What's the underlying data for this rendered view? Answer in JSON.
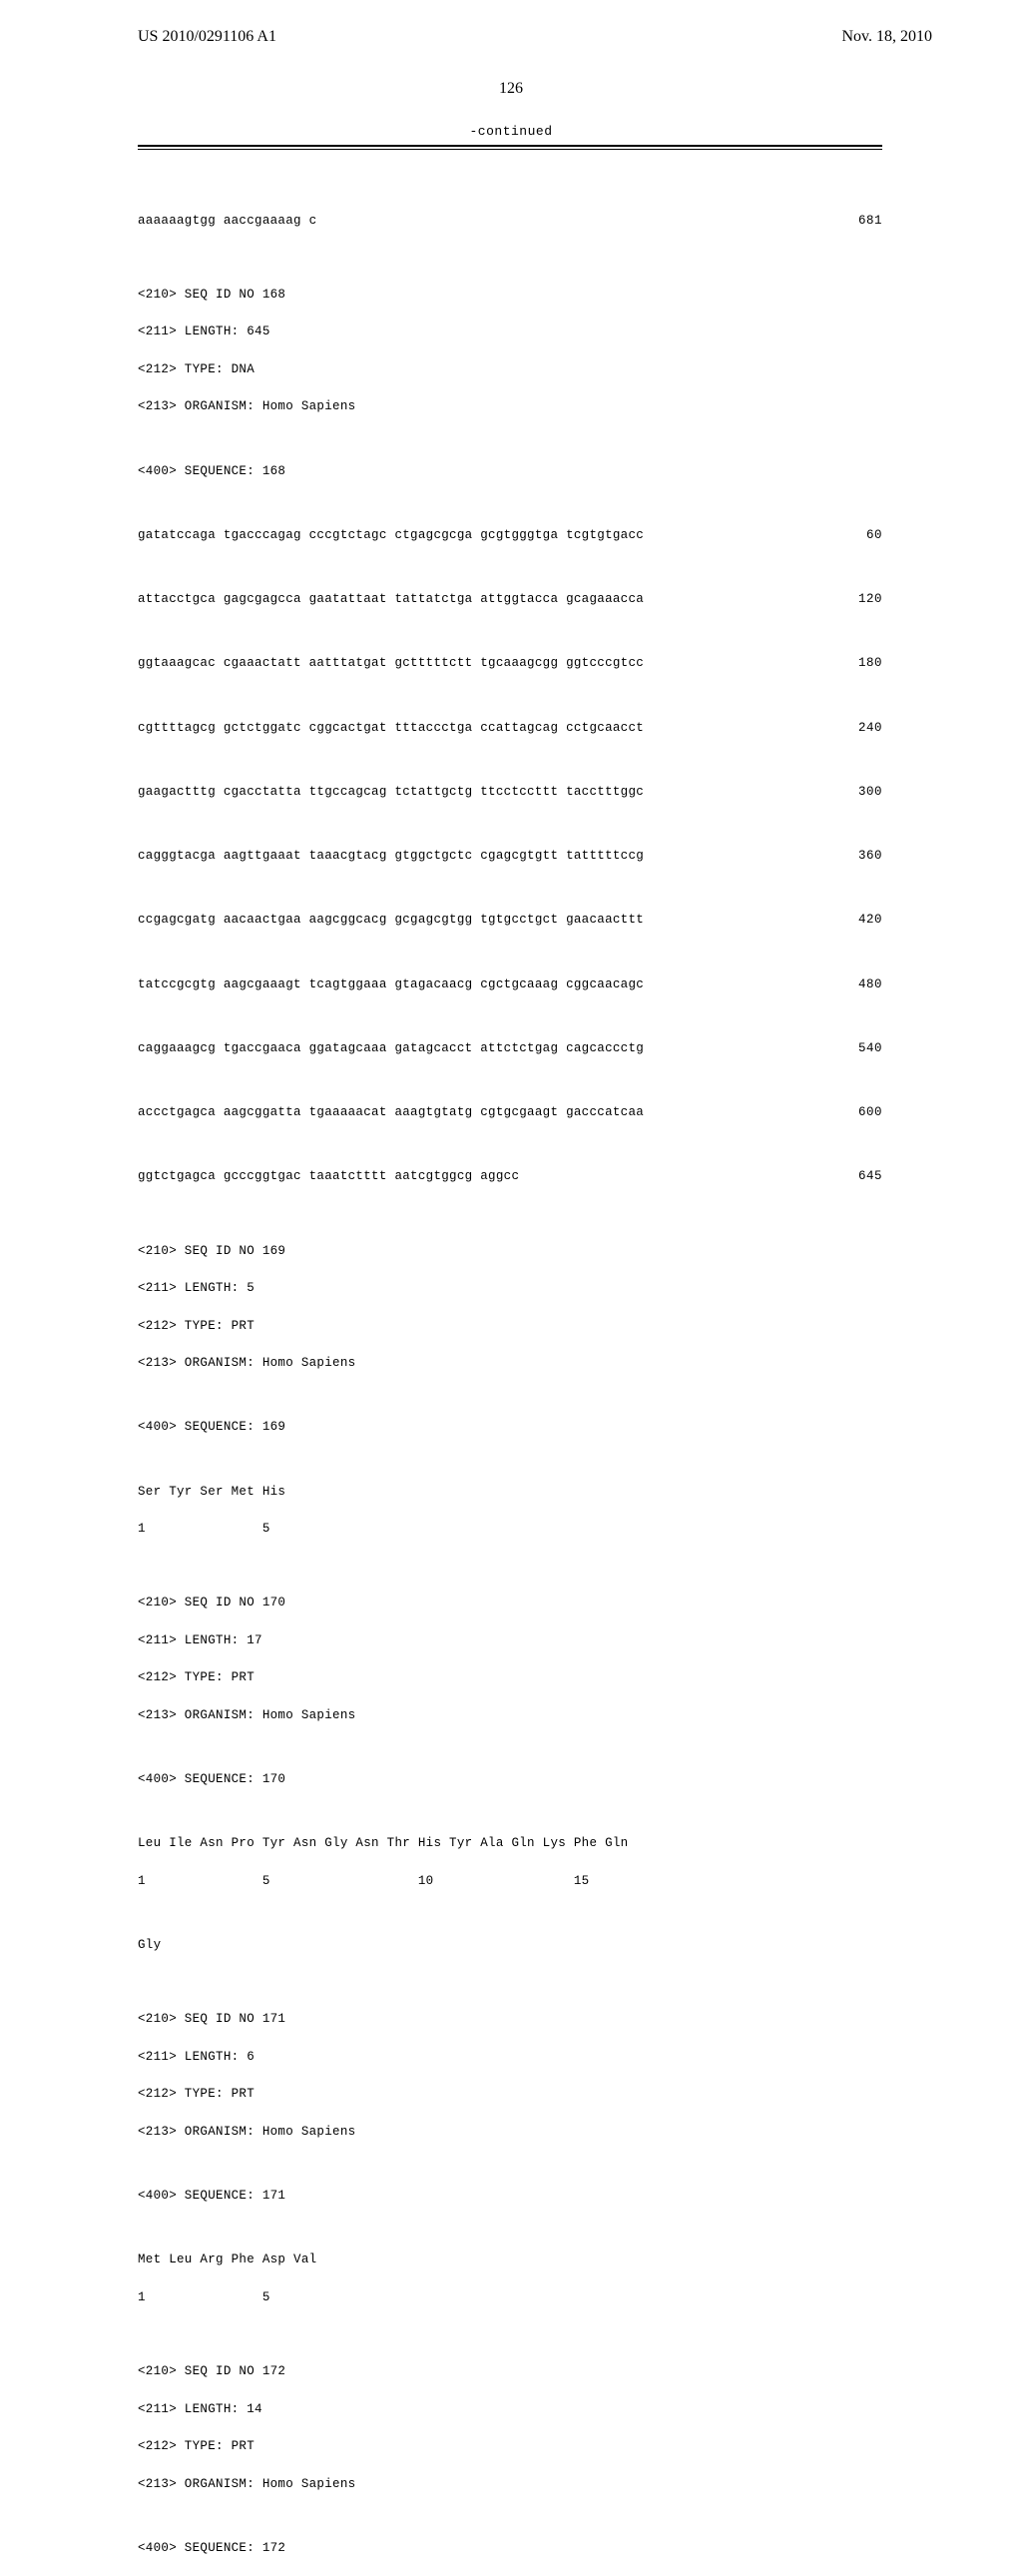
{
  "header": {
    "left": "US 2010/0291106 A1",
    "right": "Nov. 18, 2010"
  },
  "page_number": "126",
  "continued_label": "-continued",
  "seq167_tail": {
    "text": "aaaaaagtgg aaccgaaaag c",
    "num": "681"
  },
  "seq168": {
    "meta": [
      "<210> SEQ ID NO 168",
      "<211> LENGTH: 645",
      "<212> TYPE: DNA",
      "<213> ORGANISM: Homo Sapiens"
    ],
    "sequence_header": "<400> SEQUENCE: 168",
    "lines": [
      {
        "text": "gatatccaga tgacccagag cccgtctagc ctgagcgcga gcgtgggtga tcgtgtgacc",
        "num": "60"
      },
      {
        "text": "attacctgca gagcgagcca gaatattaat tattatctga attggtacca gcagaaacca",
        "num": "120"
      },
      {
        "text": "ggtaaagcac cgaaactatt aatttatgat gctttttctt tgcaaagcgg ggtcccgtcc",
        "num": "180"
      },
      {
        "text": "cgttttagcg gctctggatc cggcactgat tttaccctga ccattagcag cctgcaacct",
        "num": "240"
      },
      {
        "text": "gaagactttg cgacctatta ttgccagcag tctattgctg ttcctccttt tacctttggc",
        "num": "300"
      },
      {
        "text": "cagggtacga aagttgaaat taaacgtacg gtggctgctc cgagcgtgtt tatttttccg",
        "num": "360"
      },
      {
        "text": "ccgagcgatg aacaactgaa aagcggcacg gcgagcgtgg tgtgcctgct gaacaacttt",
        "num": "420"
      },
      {
        "text": "tatccgcgtg aagcgaaagt tcagtggaaa gtagacaacg cgctgcaaag cggcaacagc",
        "num": "480"
      },
      {
        "text": "caggaaagcg tgaccgaaca ggatagcaaa gatagcacct attctctgag cagcaccctg",
        "num": "540"
      },
      {
        "text": "accctgagca aagcggatta tgaaaaacat aaagtgtatg cgtgcgaagt gacccatcaa",
        "num": "600"
      },
      {
        "text": "ggtctgagca gcccggtgac taaatctttt aatcgtggcg aggcc",
        "num": "645"
      }
    ]
  },
  "seq169": {
    "meta": [
      "<210> SEQ ID NO 169",
      "<211> LENGTH: 5",
      "<212> TYPE: PRT",
      "<213> ORGANISM: Homo Sapiens"
    ],
    "sequence_header": "<400> SEQUENCE: 169",
    "aa_line": "Ser Tyr Ser Met His",
    "aa_nums": "1               5"
  },
  "seq170": {
    "meta": [
      "<210> SEQ ID NO 170",
      "<211> LENGTH: 17",
      "<212> TYPE: PRT",
      "<213> ORGANISM: Homo Sapiens"
    ],
    "sequence_header": "<400> SEQUENCE: 170",
    "aa_line": "Leu Ile Asn Pro Tyr Asn Gly Asn Thr His Tyr Ala Gln Lys Phe Gln",
    "aa_nums": "1               5                   10                  15",
    "aa_line2": "Gly"
  },
  "seq171": {
    "meta": [
      "<210> SEQ ID NO 171",
      "<211> LENGTH: 6",
      "<212> TYPE: PRT",
      "<213> ORGANISM: Homo Sapiens"
    ],
    "sequence_header": "<400> SEQUENCE: 171",
    "aa_line": "Met Leu Arg Phe Asp Val",
    "aa_nums": "1               5"
  },
  "seq172": {
    "meta": [
      "<210> SEQ ID NO 172",
      "<211> LENGTH: 14",
      "<212> TYPE: PRT",
      "<213> ORGANISM: Homo Sapiens"
    ],
    "sequence_header": "<400> SEQUENCE: 172"
  }
}
